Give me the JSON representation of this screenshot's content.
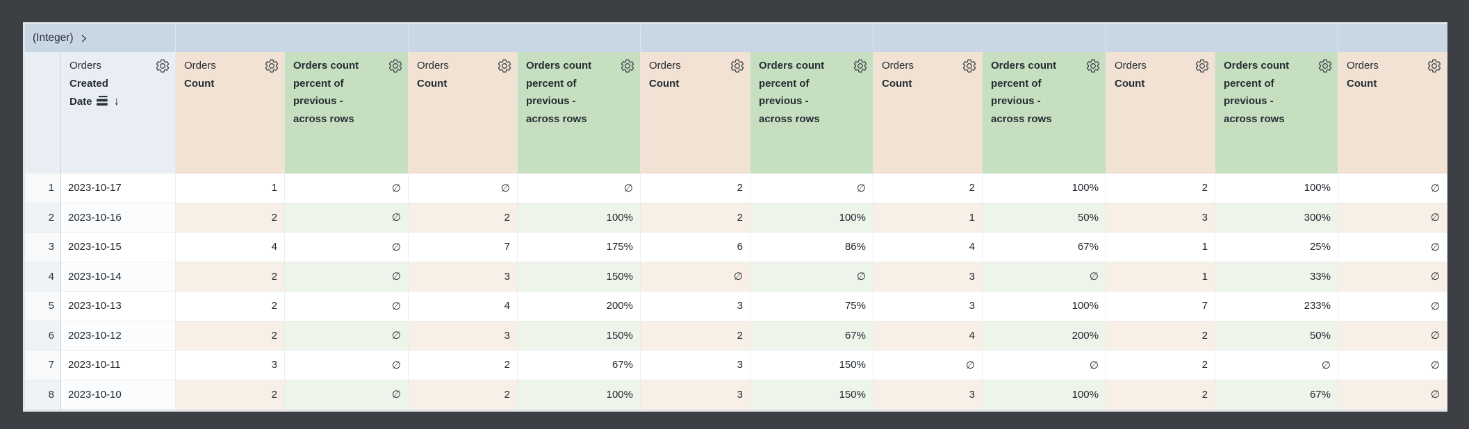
{
  "pivot_header": {
    "label": "(Integer)"
  },
  "column_headers": {
    "dimension": {
      "view": "Orders",
      "field": "Created Date"
    },
    "measure": {
      "view": "Orders",
      "field": "Count"
    },
    "table_calc_label": "Orders count percent of previous - across rows"
  },
  "glyphs": {
    "sort_descending": "↓",
    "null_value": "∅"
  },
  "colors": {
    "window_bg": "#3c4045",
    "pivot_band_bg": "#c9d6e3",
    "dimension_header_bg": "#e9eef4",
    "row_number_header_bg": "#e9eef4",
    "measure_header_bg": "#f1e2d3",
    "table_calc_header_bg": "#c6dfc1",
    "row_number_cell_bg": "#f7f9fb",
    "row_number_cell_bg_even": "#eef3f7",
    "even_row_measure_bg": "#f8efe7",
    "even_row_calc_bg": "#edf4ea",
    "even_row_date_bg": "#fbfcfd",
    "header_text": "#262d33",
    "icon_color": "#3b4248"
  },
  "table": {
    "rows": [
      {
        "num": "1",
        "date": "2023-10-17",
        "values": [
          "1",
          "∅",
          "∅",
          "∅",
          "2",
          "∅",
          "2",
          "100%",
          "2",
          "100%",
          "∅"
        ]
      },
      {
        "num": "2",
        "date": "2023-10-16",
        "values": [
          "2",
          "∅",
          "2",
          "100%",
          "2",
          "100%",
          "1",
          "50%",
          "3",
          "300%",
          "∅"
        ]
      },
      {
        "num": "3",
        "date": "2023-10-15",
        "values": [
          "4",
          "∅",
          "7",
          "175%",
          "6",
          "86%",
          "4",
          "67%",
          "1",
          "25%",
          "∅"
        ]
      },
      {
        "num": "4",
        "date": "2023-10-14",
        "values": [
          "2",
          "∅",
          "3",
          "150%",
          "∅",
          "∅",
          "3",
          "∅",
          "1",
          "33%",
          "∅"
        ]
      },
      {
        "num": "5",
        "date": "2023-10-13",
        "values": [
          "2",
          "∅",
          "4",
          "200%",
          "3",
          "75%",
          "3",
          "100%",
          "7",
          "233%",
          "∅"
        ]
      },
      {
        "num": "6",
        "date": "2023-10-12",
        "values": [
          "2",
          "∅",
          "3",
          "150%",
          "2",
          "67%",
          "4",
          "200%",
          "2",
          "50%",
          "∅"
        ]
      },
      {
        "num": "7",
        "date": "2023-10-11",
        "values": [
          "3",
          "∅",
          "2",
          "67%",
          "3",
          "150%",
          "∅",
          "∅",
          "2",
          "∅",
          "∅"
        ]
      },
      {
        "num": "8",
        "date": "2023-10-10",
        "values": [
          "2",
          "∅",
          "2",
          "100%",
          "3",
          "150%",
          "3",
          "100%",
          "2",
          "67%",
          "∅"
        ]
      }
    ]
  }
}
